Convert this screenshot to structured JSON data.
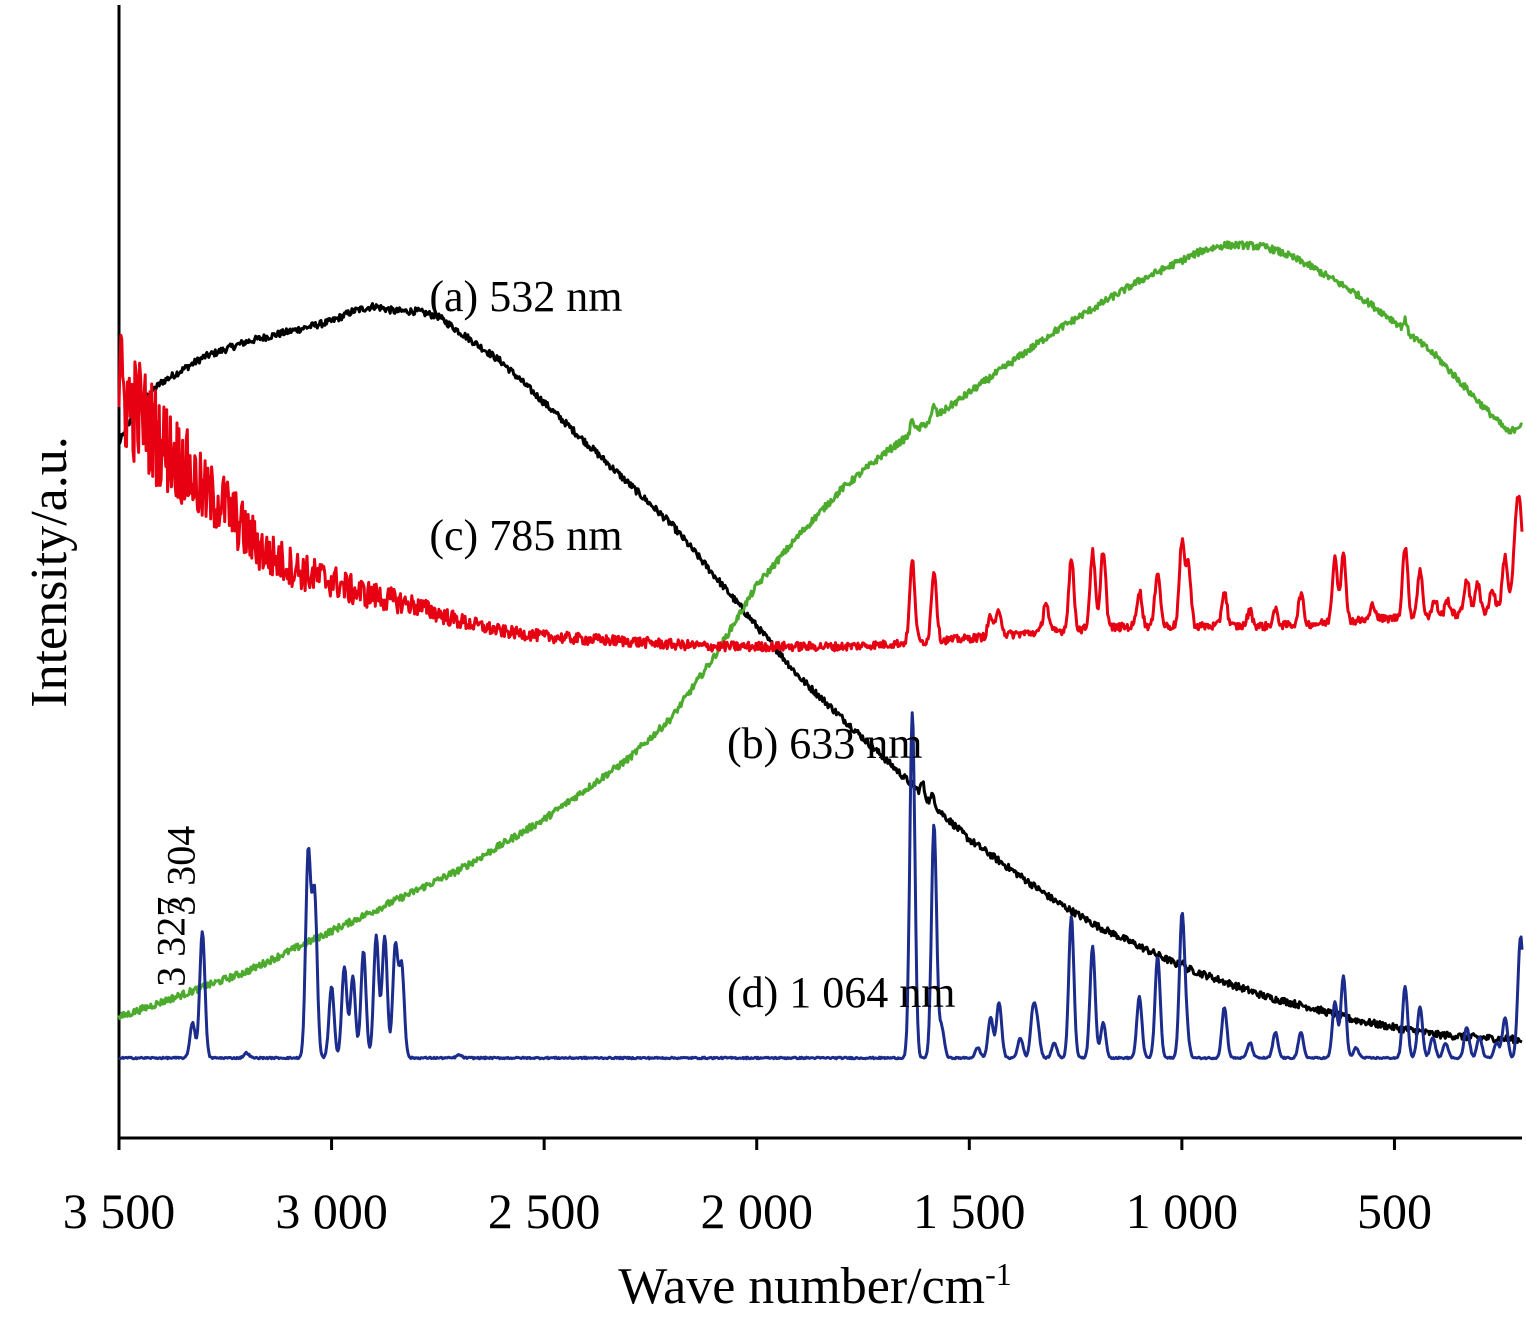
{
  "chart_data": {
    "type": "line",
    "xlabel": "Wave number/cm",
    "xlabel_superscript": "-1",
    "ylabel": "Intensity/a.u.",
    "xlim": [
      3500,
      200
    ],
    "x_axis_reversed": true,
    "ylim": [
      0,
      100
    ],
    "y_ticks_shown": false,
    "grid": false,
    "legend": "none (curves labeled inline)",
    "x_ticks": [
      {
        "value": 3500,
        "label": "3 500"
      },
      {
        "value": 3000,
        "label": "3 000"
      },
      {
        "value": 2500,
        "label": "2 500"
      },
      {
        "value": 2000,
        "label": "2 000"
      },
      {
        "value": 1500,
        "label": "1 500"
      },
      {
        "value": 1000,
        "label": "1 000"
      },
      {
        "value": 500,
        "label": "500"
      }
    ],
    "series": [
      {
        "name": "(a) 532 nm",
        "color": "#000000",
        "label_at": [
          2770,
          80
        ],
        "points": [
          [
            3500,
            67
          ],
          [
            3450,
            71
          ],
          [
            3400,
            73
          ],
          [
            3300,
            75.5
          ],
          [
            3200,
            77
          ],
          [
            3100,
            78
          ],
          [
            3000,
            79
          ],
          [
            2950,
            80
          ],
          [
            2900,
            80.5
          ],
          [
            2850,
            80
          ],
          [
            2800,
            80
          ],
          [
            2750,
            79.5
          ],
          [
            2700,
            78
          ],
          [
            2600,
            75
          ],
          [
            2500,
            71
          ],
          [
            2400,
            67
          ],
          [
            2300,
            63
          ],
          [
            2200,
            59
          ],
          [
            2100,
            54
          ],
          [
            2000,
            49
          ],
          [
            1900,
            44
          ],
          [
            1800,
            40
          ],
          [
            1700,
            36
          ],
          [
            1600,
            32
          ],
          [
            1500,
            28
          ],
          [
            1400,
            25
          ],
          [
            1300,
            22
          ],
          [
            1200,
            19.5
          ],
          [
            1100,
            17.5
          ],
          [
            1000,
            15.5
          ],
          [
            900,
            14
          ],
          [
            800,
            12.5
          ],
          [
            700,
            11.5
          ],
          [
            600,
            10.3
          ],
          [
            500,
            9.5
          ],
          [
            400,
            8.8
          ],
          [
            300,
            8.5
          ],
          [
            200,
            8.3
          ]
        ],
        "spikes": [
          [
            1610,
            1.2
          ],
          [
            1585,
            1.0
          ],
          [
            1000,
            0.5
          ]
        ]
      },
      {
        "name": "(b) 633 nm",
        "color": "#4cab2d",
        "label_at": [
          2070,
          36
        ],
        "points": [
          [
            3500,
            10.5
          ],
          [
            3400,
            12
          ],
          [
            3300,
            13.5
          ],
          [
            3200,
            15
          ],
          [
            3100,
            17
          ],
          [
            3000,
            19
          ],
          [
            2900,
            21
          ],
          [
            2800,
            23
          ],
          [
            2700,
            25
          ],
          [
            2600,
            27.5
          ],
          [
            2500,
            30
          ],
          [
            2400,
            33
          ],
          [
            2300,
            36
          ],
          [
            2200,
            40
          ],
          [
            2150,
            43
          ],
          [
            2100,
            46
          ],
          [
            2050,
            49.5
          ],
          [
            2000,
            53
          ],
          [
            1900,
            58
          ],
          [
            1800,
            62.5
          ],
          [
            1700,
            66
          ],
          [
            1600,
            69
          ],
          [
            1500,
            72
          ],
          [
            1400,
            75
          ],
          [
            1300,
            78
          ],
          [
            1200,
            80.5
          ],
          [
            1100,
            83
          ],
          [
            1000,
            85
          ],
          [
            950,
            86
          ],
          [
            900,
            86.5
          ],
          [
            850,
            86.5
          ],
          [
            800,
            86.3
          ],
          [
            750,
            85.5
          ],
          [
            700,
            84.5
          ],
          [
            600,
            82
          ],
          [
            500,
            79
          ],
          [
            400,
            75.5
          ],
          [
            300,
            71
          ],
          [
            230,
            68
          ],
          [
            200,
            69
          ]
        ],
        "spikes": [
          [
            1634,
            1.5
          ],
          [
            1583,
            1.2
          ],
          [
            475,
            1.0
          ]
        ]
      },
      {
        "name": "(c) 785 nm",
        "color": "#e60012",
        "label_at": [
          2770,
          56.5
        ],
        "points": [
          [
            3500,
            73
          ],
          [
            3480,
            71
          ],
          [
            3450,
            70
          ],
          [
            3400,
            67
          ],
          [
            3350,
            65
          ],
          [
            3300,
            62
          ],
          [
            3250,
            61
          ],
          [
            3200,
            58
          ],
          [
            3150,
            56
          ],
          [
            3100,
            55
          ],
          [
            3050,
            54
          ],
          [
            3000,
            53.5
          ],
          [
            2950,
            52.5
          ],
          [
            2900,
            52
          ],
          [
            2800,
            51
          ],
          [
            2700,
            49.5
          ],
          [
            2600,
            48.5
          ],
          [
            2500,
            48
          ],
          [
            2400,
            47.7
          ],
          [
            2300,
            47.5
          ],
          [
            2200,
            47.2
          ],
          [
            2100,
            47
          ],
          [
            2000,
            47
          ],
          [
            1900,
            47
          ],
          [
            1800,
            47
          ],
          [
            1700,
            47.2
          ],
          [
            1600,
            47.5
          ],
          [
            1500,
            47.8
          ],
          [
            1400,
            48.2
          ],
          [
            1300,
            48.5
          ],
          [
            1200,
            48.8
          ],
          [
            1100,
            49
          ],
          [
            1000,
            49
          ],
          [
            900,
            49
          ],
          [
            800,
            49
          ],
          [
            700,
            49.2
          ],
          [
            600,
            49.5
          ],
          [
            500,
            49.8
          ],
          [
            400,
            50
          ],
          [
            300,
            50.3
          ],
          [
            230,
            51
          ],
          [
            200,
            52
          ]
        ],
        "noise": [
          [
            3500,
            6
          ],
          [
            3300,
            3.5
          ],
          [
            3100,
            2
          ],
          [
            2800,
            1
          ],
          [
            2600,
            0.6
          ],
          [
            1700,
            0.4
          ]
        ],
        "peaks": [
          [
            1634,
            8
          ],
          [
            1583,
            7
          ],
          [
            1450,
            2
          ],
          [
            1430,
            2.5
          ],
          [
            1320,
            3
          ],
          [
            1260,
            7
          ],
          [
            1210,
            7.5
          ],
          [
            1185,
            7.7
          ],
          [
            1100,
            3.5
          ],
          [
            1057,
            5.5
          ],
          [
            1000,
            8
          ],
          [
            985,
            6
          ],
          [
            900,
            3.5
          ],
          [
            840,
            1.5
          ],
          [
            780,
            1.5
          ],
          [
            720,
            3
          ],
          [
            640,
            6.5
          ],
          [
            620,
            6.5
          ],
          [
            550,
            1.5
          ],
          [
            475,
            7
          ],
          [
            440,
            4.5
          ],
          [
            405,
            1.5
          ],
          [
            375,
            1.5
          ],
          [
            330,
            3.5
          ],
          [
            305,
            3
          ],
          [
            270,
            2
          ],
          [
            240,
            5
          ],
          [
            215,
            6
          ],
          [
            205,
            8
          ]
        ]
      },
      {
        "name": "(d) 1 064 nm",
        "color": "#1c2c8c",
        "label_at": [
          2070,
          11.5
        ],
        "points": [
          [
            3500,
            6.5
          ],
          [
            200,
            6.5
          ]
        ],
        "peaks": [
          [
            3327,
            3.5
          ],
          [
            3304,
            12.5
          ],
          [
            3200,
            0.5
          ],
          [
            3055,
            20
          ],
          [
            3040,
            16
          ],
          [
            3000,
            7
          ],
          [
            2970,
            9
          ],
          [
            2950,
            8
          ],
          [
            2925,
            10.5
          ],
          [
            2895,
            12
          ],
          [
            2875,
            12
          ],
          [
            2850,
            11
          ],
          [
            2835,
            9
          ],
          [
            2700,
            0.3
          ],
          [
            1634,
            34
          ],
          [
            1583,
            23
          ],
          [
            1565,
            3
          ],
          [
            1480,
            1
          ],
          [
            1450,
            4
          ],
          [
            1430,
            5.5
          ],
          [
            1380,
            2
          ],
          [
            1350,
            4.5
          ],
          [
            1340,
            3
          ],
          [
            1300,
            1.5
          ],
          [
            1260,
            14
          ],
          [
            1210,
            11
          ],
          [
            1185,
            3.5
          ],
          [
            1100,
            6
          ],
          [
            1057,
            10
          ],
          [
            1000,
            13.5
          ],
          [
            990,
            3
          ],
          [
            900,
            5
          ],
          [
            840,
            1.5
          ],
          [
            780,
            2.5
          ],
          [
            720,
            2.5
          ],
          [
            640,
            5.5
          ],
          [
            620,
            8
          ],
          [
            590,
            1
          ],
          [
            475,
            7
          ],
          [
            440,
            5
          ],
          [
            410,
            2
          ],
          [
            380,
            1.5
          ],
          [
            330,
            3
          ],
          [
            300,
            2
          ],
          [
            260,
            1.5
          ],
          [
            240,
            4
          ],
          [
            205,
            8
          ],
          [
            200,
            5
          ]
        ]
      }
    ],
    "annotations": [
      {
        "text": "3 327",
        "x": 3327,
        "y": 13.5
      },
      {
        "text": "3 304",
        "x": 3304,
        "y": 20.5
      }
    ]
  }
}
